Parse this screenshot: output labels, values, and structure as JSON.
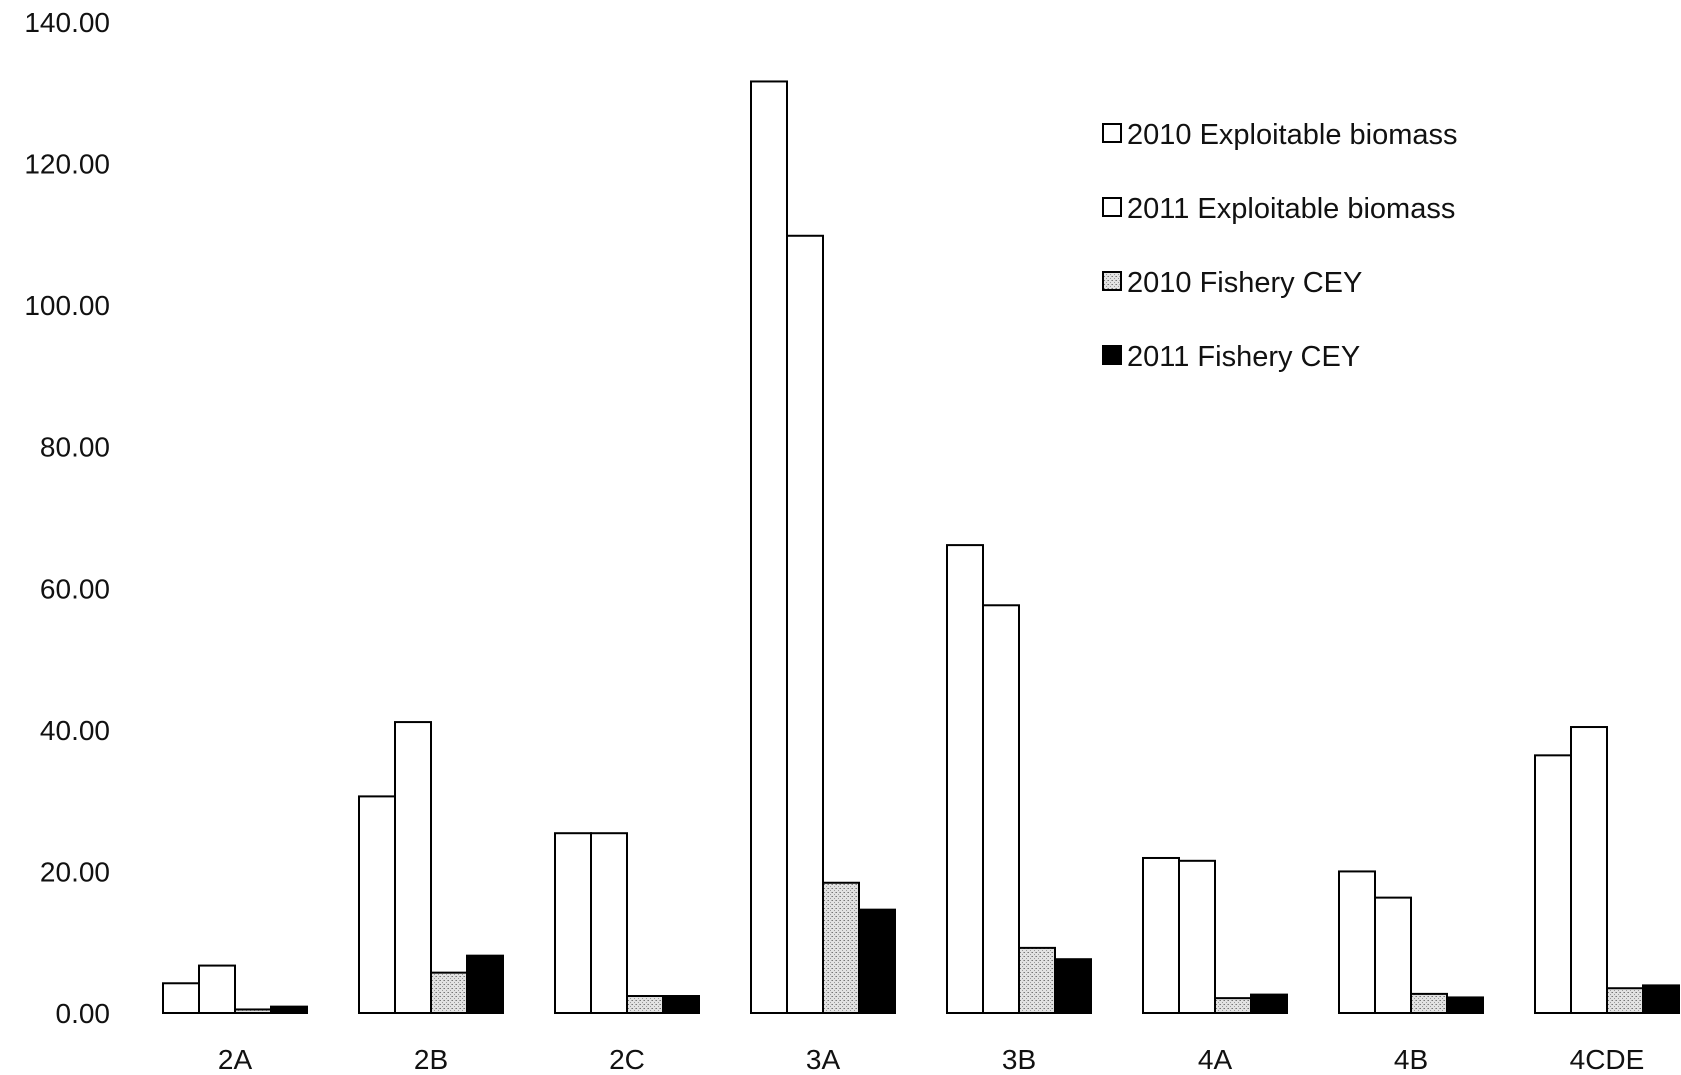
{
  "chart_data": {
    "type": "bar",
    "title": "",
    "xlabel": "",
    "ylabel": "",
    "ylim": [
      0,
      140
    ],
    "yticks": [
      "0.00",
      "20.00",
      "40.00",
      "60.00",
      "80.00",
      "100.00",
      "120.00",
      "140.00"
    ],
    "grid": false,
    "legend_position": "top-right",
    "categories": [
      "2A",
      "2B",
      "2C",
      "3A",
      "3B",
      "4A",
      "4B",
      "4CDE"
    ],
    "series": [
      {
        "name": "2010 Exploitable biomass",
        "color": "#ffffff",
        "pattern": "none",
        "values": [
          4.2,
          30.6,
          25.4,
          131.6,
          66.1,
          21.9,
          20.0,
          36.4
        ]
      },
      {
        "name": "2011 Exploitable biomass",
        "color": "#ffffff",
        "pattern": "none",
        "values": [
          6.7,
          41.1,
          25.4,
          109.8,
          57.6,
          21.5,
          16.3,
          40.4
        ]
      },
      {
        "name": "2010 Fishery CEY",
        "color": "#d8d8d8",
        "pattern": "stipple",
        "values": [
          0.5,
          5.7,
          2.4,
          18.4,
          9.2,
          2.1,
          2.7,
          3.5
        ]
      },
      {
        "name": "2011 Fishery CEY",
        "color": "#000000",
        "pattern": "none",
        "values": [
          0.9,
          8.1,
          2.4,
          14.6,
          7.6,
          2.6,
          2.2,
          3.9
        ]
      }
    ]
  }
}
